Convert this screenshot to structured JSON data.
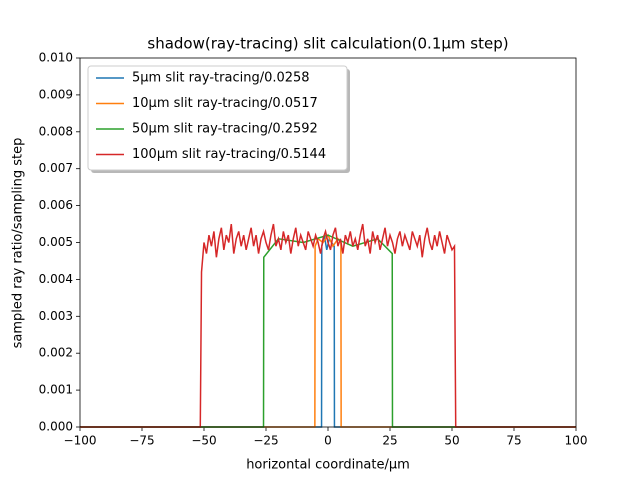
{
  "chart_data": {
    "type": "line",
    "title": "shadow(ray-tracing) slit calculation(0.1μm step)",
    "x_label": "horizontal coordinate/μm",
    "y_label": "sampled ray ratio/sampling step",
    "xlim": [
      -100,
      100
    ],
    "ylim": [
      0,
      0.01
    ],
    "xticks": [
      {
        "value": -100,
        "label": "−100"
      },
      {
        "value": -75,
        "label": "−75"
      },
      {
        "value": -50,
        "label": "−50"
      },
      {
        "value": -25,
        "label": "−25"
      },
      0,
      25,
      50,
      75,
      100
    ],
    "yticks": [
      {
        "value": 0,
        "label": "0.000"
      },
      {
        "value": 0.001,
        "label": "0.001"
      },
      {
        "value": 0.002,
        "label": "0.002"
      },
      {
        "value": 0.003,
        "label": "0.003"
      },
      {
        "value": 0.004,
        "label": "0.004"
      },
      {
        "value": 0.005,
        "label": "0.005"
      },
      {
        "value": 0.006,
        "label": "0.006"
      },
      {
        "value": 0.007,
        "label": "0.007"
      },
      {
        "value": 0.008,
        "label": "0.008"
      },
      {
        "value": 0.009,
        "label": "0.009"
      },
      {
        "value": 0.01,
        "label": "0.010"
      }
    ],
    "legend": "upper left",
    "series": [
      {
        "name": "5μm slit ray-tracing/0.0258",
        "color": "#1f77b4",
        "x": [
          -100,
          -2.6,
          -2.5,
          -1.5,
          -0.5,
          0.5,
          1.5,
          2.5,
          2.6,
          100
        ],
        "values": [
          0,
          0,
          0.0049,
          0.0052,
          0.0048,
          0.0051,
          0.005,
          0.0049,
          0,
          0
        ]
      },
      {
        "name": "10μm slit ray-tracing/0.0517",
        "color": "#ff7f0e",
        "x": [
          -100,
          -5.3,
          -5.2,
          -4,
          -2,
          0,
          2,
          4,
          5.2,
          5.3,
          100
        ],
        "values": [
          0,
          0,
          0.0049,
          0.0051,
          0.005,
          0.0052,
          0.0049,
          0.0051,
          0.005,
          0,
          0
        ]
      },
      {
        "name": "50μm slit ray-tracing/0.2592",
        "color": "#2ca02c",
        "x": [
          -100,
          -26,
          -25.9,
          -20,
          -10,
          0,
          10,
          20,
          25.9,
          26,
          100
        ],
        "values": [
          0,
          0,
          0.0046,
          0.0051,
          0.005,
          0.0052,
          0.0049,
          0.0051,
          0.0047,
          0,
          0
        ]
      },
      {
        "name": "100μm slit ray-tracing/0.5144",
        "color": "#d62728",
        "x": [
          -100,
          -51.5,
          -51,
          -50,
          -49,
          -48,
          -47,
          -46,
          -45,
          -44,
          -43,
          -42,
          -41,
          -40,
          -39,
          -38,
          -37,
          -36,
          -35,
          -34,
          -33,
          -32,
          -31,
          -30,
          -29,
          -28,
          -27,
          -26,
          -25,
          -24,
          -23,
          -22,
          -21,
          -20,
          -19,
          -18,
          -17,
          -16,
          -15,
          -14,
          -13,
          -12,
          -11,
          -10,
          -9,
          -8,
          -7,
          -6,
          -5,
          -4,
          -3,
          -2,
          -1,
          0,
          1,
          2,
          3,
          4,
          5,
          6,
          7,
          8,
          9,
          10,
          11,
          12,
          13,
          14,
          15,
          16,
          17,
          18,
          19,
          20,
          21,
          22,
          23,
          24,
          25,
          26,
          27,
          28,
          29,
          30,
          31,
          32,
          33,
          34,
          35,
          36,
          37,
          38,
          39,
          40,
          41,
          42,
          43,
          44,
          45,
          46,
          47,
          48,
          49,
          50,
          51,
          51.5,
          100
        ],
        "values": [
          0,
          0,
          0.0042,
          0.005,
          0.0047,
          0.0052,
          0.0049,
          0.0053,
          0.0046,
          0.0051,
          0.0054,
          0.0048,
          0.0052,
          0.005,
          0.0055,
          0.0047,
          0.0051,
          0.0053,
          0.0049,
          0.0052,
          0.0048,
          0.0051,
          0.0054,
          0.0049,
          0.0052,
          0.0047,
          0.0051,
          0.0053,
          0.005,
          0.0048,
          0.0052,
          0.0055,
          0.0049,
          0.0051,
          0.0048,
          0.0053,
          0.005,
          0.0052,
          0.0047,
          0.0051,
          0.0054,
          0.0049,
          0.0052,
          0.005,
          0.0048,
          0.0053,
          0.0051,
          0.0049,
          0.0052,
          0.005,
          0.0047,
          0.0051,
          0.0053,
          0.005,
          0.0048,
          0.0052,
          0.0054,
          0.0049,
          0.0051,
          0.0047,
          0.0052,
          0.005,
          0.0053,
          0.0049,
          0.0051,
          0.0048,
          0.0052,
          0.0055,
          0.0049,
          0.0051,
          0.0047,
          0.0053,
          0.005,
          0.0052,
          0.0048,
          0.0051,
          0.0054,
          0.0049,
          0.0052,
          0.005,
          0.0047,
          0.0051,
          0.0053,
          0.0049,
          0.0052,
          0.005,
          0.0048,
          0.0053,
          0.0051,
          0.0049,
          0.0052,
          0.0046,
          0.0051,
          0.0054,
          0.005,
          0.0048,
          0.0052,
          0.0049,
          0.0053,
          0.005,
          0.0047,
          0.0052,
          0.005,
          0.0048,
          0.0049,
          0,
          0
        ]
      }
    ]
  }
}
